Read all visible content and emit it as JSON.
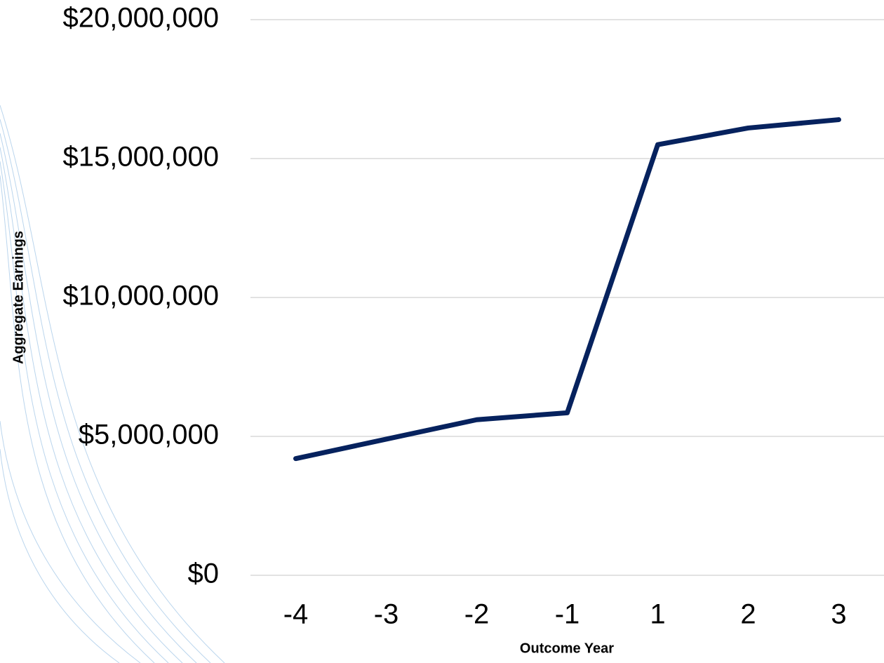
{
  "chart_data": {
    "type": "line",
    "x_label": "Outcome Year",
    "y_label": "Aggregate Earnings",
    "categories": [
      "-4",
      "-3",
      "-2",
      "-1",
      "1",
      "2",
      "3"
    ],
    "series": [
      {
        "name": "Aggregate Earnings",
        "color": "#06225e",
        "values": [
          4200000,
          4900000,
          5600000,
          5850000,
          15500000,
          16100000,
          16400000
        ]
      }
    ],
    "ylim": [
      0,
      20000000
    ],
    "yticks": [
      {
        "value": 0,
        "label": "$0"
      },
      {
        "value": 5000000,
        "label": "$5,000,000"
      },
      {
        "value": 10000000,
        "label": "$10,000,000"
      },
      {
        "value": 15000000,
        "label": "$15,000,000"
      },
      {
        "value": 20000000,
        "label": "$20,000,000"
      }
    ],
    "grid": true
  }
}
